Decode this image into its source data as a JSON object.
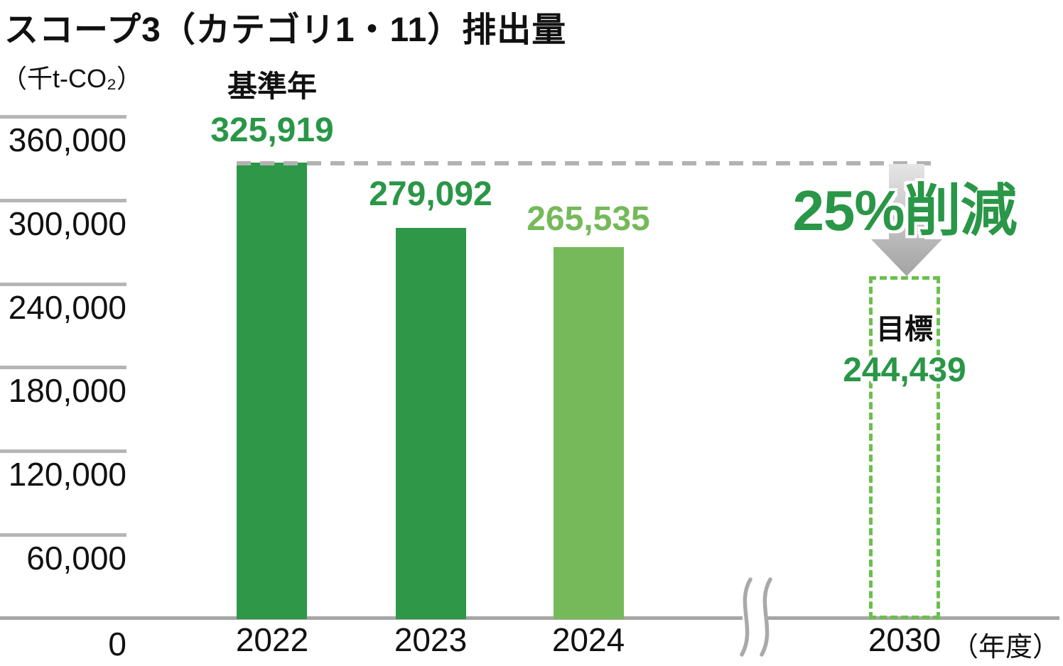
{
  "chart_data": {
    "type": "bar",
    "title": "スコープ3（カテゴリ1・11）排出量",
    "ylabel": "（千t-CO₂）",
    "ylim": [
      0,
      420000
    ],
    "ytick_interval": 60000,
    "yticks": [
      "360,000",
      "300,000",
      "240,000",
      "180,000",
      "120,000",
      "60,000"
    ],
    "zero_label": "0",
    "grid": "off",
    "axis_break_between": [
      "2024",
      "2030"
    ],
    "bars": [
      {
        "year": "2022",
        "value": 325919,
        "label": "325,919",
        "note": "基準年",
        "color": "#2e9748",
        "style": "solid"
      },
      {
        "year": "2023",
        "value": 279092,
        "label": "279,092",
        "note": "",
        "color": "#2e9748",
        "style": "solid"
      },
      {
        "year": "2024",
        "value": 265535,
        "label": "265,535",
        "note": "",
        "color": "#75b95a",
        "style": "solid"
      },
      {
        "year": "2030",
        "value": 244439,
        "label": "244,439",
        "note": "目標",
        "color": "#6abf4e",
        "style": "dashed-outline"
      }
    ],
    "annotation": {
      "reduction_label": "25%削減",
      "from_year": "2022",
      "to_year": "2030"
    },
    "xaxis_suffix": "（年度）"
  },
  "colors": {
    "bar_dark_green": "#2e9748",
    "bar_light_green": "#75b95a",
    "target_box_green": "#6abf4e",
    "value_text_green": "#2a9647",
    "axis_gray": "#a6a6a6",
    "tick_gray": "#b5b5b5",
    "dash_gray": "#b2b2b2",
    "arrow_gray_top": "#e5e5e5",
    "arrow_gray_bottom": "#a3a3a3",
    "text_black": "#111111"
  }
}
